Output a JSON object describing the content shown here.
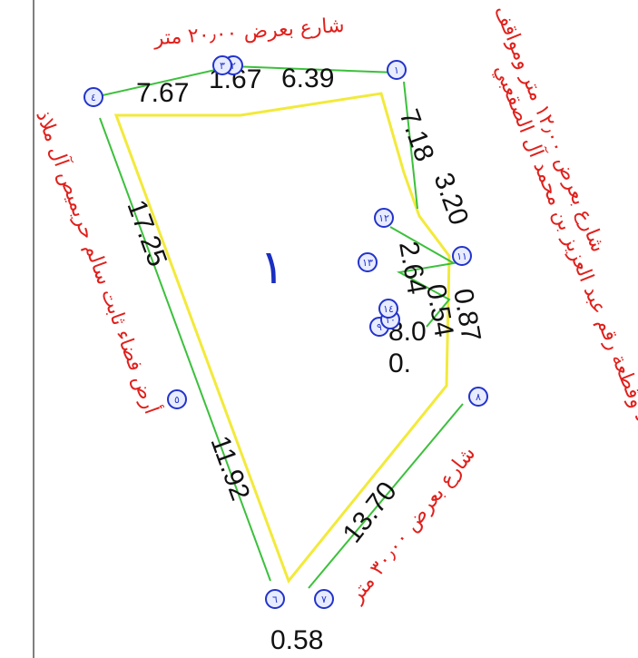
{
  "parcel_label": "١",
  "streets": [
    "شارع بعرض ٢٠٫٠٠ متر",
    "شارع بعرض ١٢٫٠٠ متر ومواقف",
    "شارع بعرض ٣٠٫٠٠ متر"
  ],
  "neighbors": [
    "أرض فضاء ثابت سالم حريميص آل ملاذ",
    "الحد وقطعة رقم عبد العزيز بن محمد آل الصقعبي"
  ],
  "dimensions": [
    "7.67",
    "1.67",
    "6.39",
    "7.18",
    "3.20",
    "2.64",
    "0.87",
    "0.54",
    "8.0",
    "0.",
    "17.25",
    "11.92",
    "13.70",
    "0.58"
  ],
  "nodes": [
    "١",
    "٢",
    "٣",
    "٤",
    "٥",
    "٦",
    "٧",
    "٨",
    "٩",
    "١٠",
    "١١",
    "١٢",
    "١٣",
    "١٤"
  ]
}
